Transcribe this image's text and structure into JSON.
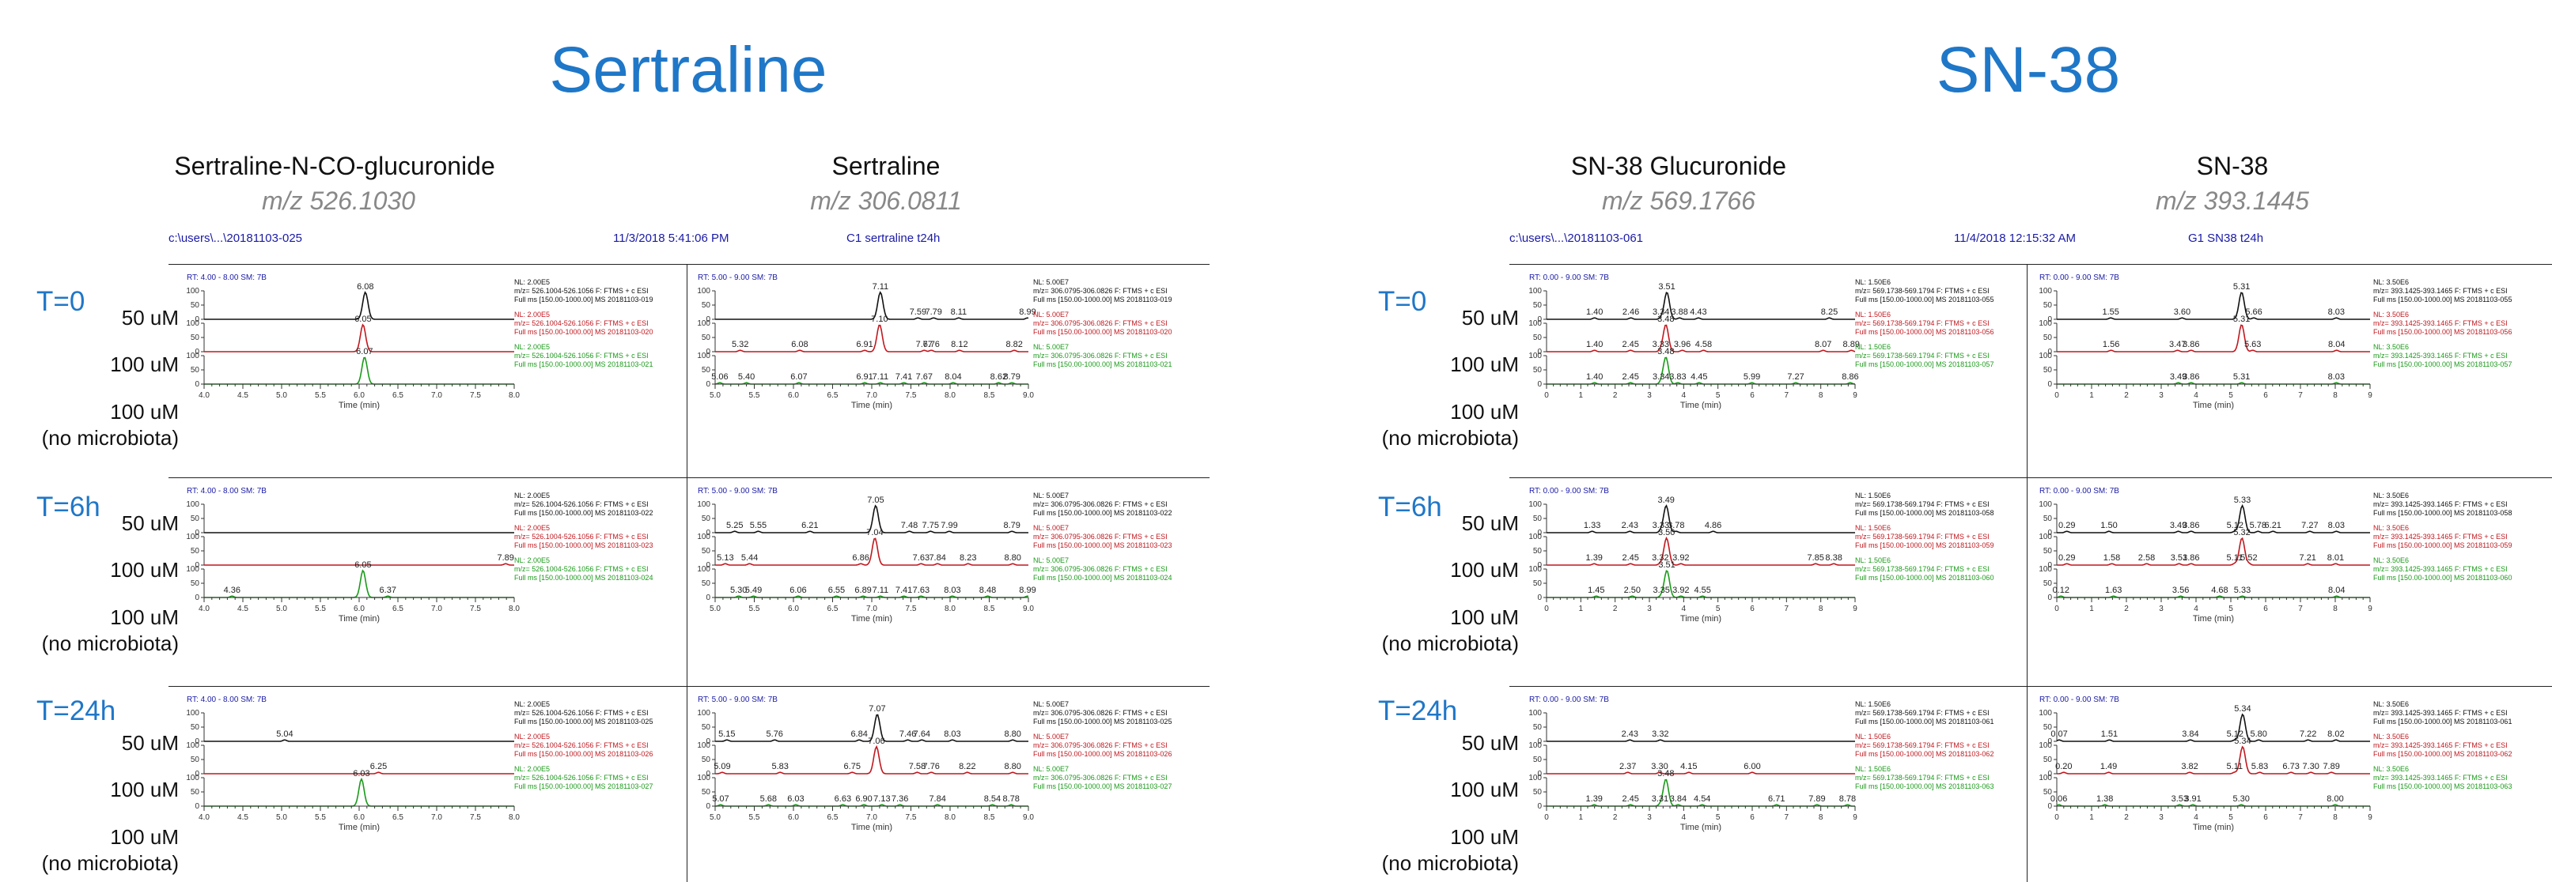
{
  "titles": {
    "left": "Sertraline",
    "right": "SN-38"
  },
  "compounds": [
    {
      "name": "Sertraline-N-CO-glucuronide",
      "mz": "m/z 526.1030"
    },
    {
      "name": "Sertraline",
      "mz": "m/z 306.0811"
    },
    {
      "name": "SN-38 Glucuronide",
      "mz": "m/z 569.1766"
    },
    {
      "name": "SN-38",
      "mz": "m/z 393.1445"
    }
  ],
  "headers": {
    "left": {
      "path": "c:\\users\\...\\20181103-025",
      "date": "11/3/2018 5:41:06 PM",
      "sample": "C1 sertraline t24h"
    },
    "right": {
      "path": "c:\\users\\...\\20181103-061",
      "date": "11/4/2018 12:15:32 AM",
      "sample": "G1 SN38 t24h"
    }
  },
  "times": [
    "T=0",
    "T=6h",
    "T=24h"
  ],
  "conditions": [
    "50 uM",
    "100 uM",
    "100 uM",
    "(no microbiota)"
  ],
  "colors": {
    "trace1": "#111111",
    "trace2": "#c0181f",
    "trace3": "#1a9a1a",
    "accent": "#1f77c8",
    "header": "#1a1aa6"
  },
  "chart_data": [
    {
      "type": "line",
      "panel": "Sertraline-N-CO-glucuronide",
      "rt_label": "RT: 4.00 - 8.00   SM: 7B",
      "xlim": [
        4.0,
        8.0
      ],
      "xticks": [
        "4.0",
        "4.5",
        "5.0",
        "5.5",
        "6.0",
        "6.5",
        "7.0",
        "7.5",
        "8.0"
      ],
      "xlabel": "Time (min)",
      "ylabel_ticks": [
        "100",
        "50",
        "0"
      ],
      "groups": [
        {
          "traces": [
            {
              "nl": "NL: 2.00E5",
              "filter": "m/z= 526.1004-526.1056 F: FTMS + c ESI",
              "scan": "Full ms [150.00-1000.00]  MS 20181103-019",
              "peaks": [
                6.08
              ],
              "labels": [
                "6.08"
              ]
            },
            {
              "nl": "NL: 2.00E5",
              "filter": "m/z= 526.1004-526.1056 F: FTMS + c ESI",
              "scan": "Full ms [150.00-1000.00]  MS 20181103-020",
              "peaks": [
                6.05
              ],
              "labels": [
                "6.05"
              ]
            },
            {
              "nl": "NL: 2.00E5",
              "filter": "m/z= 526.1004-526.1056 F: FTMS + c ESI",
              "scan": "Full ms [150.00-1000.00]  MS 20181103-021",
              "peaks": [
                6.07
              ],
              "labels": [
                "6.07"
              ]
            }
          ]
        },
        {
          "traces": [
            {
              "nl": "NL: 2.00E5",
              "filter": "m/z= 526.1004-526.1056 F: FTMS + c ESI",
              "scan": "Full ms [150.00-1000.00]  MS 20181103-022",
              "peaks": [],
              "labels": []
            },
            {
              "nl": "NL: 2.00E5",
              "filter": "m/z= 526.1004-526.1056 F: FTMS + c ESI",
              "scan": "Full ms [150.00-1000.00]  MS 20181103-023",
              "peaks": [],
              "labels": [
                "7.89"
              ]
            },
            {
              "nl": "NL: 2.00E5",
              "filter": "m/z= 526.1004-526.1056 F: FTMS + c ESI",
              "scan": "Full ms [150.00-1000.00]  MS 20181103-024",
              "peaks": [
                6.05
              ],
              "labels": [
                "4.36",
                "6.05",
                "6.37"
              ]
            }
          ]
        },
        {
          "traces": [
            {
              "nl": "NL: 2.00E5",
              "filter": "m/z= 526.1004-526.1056 F: FTMS + c ESI",
              "scan": "Full ms [150.00-1000.00]  MS 20181103-025",
              "peaks": [],
              "labels": [
                "5.04"
              ]
            },
            {
              "nl": "NL: 2.00E5",
              "filter": "m/z= 526.1004-526.1056 F: FTMS + c ESI",
              "scan": "Full ms [150.00-1000.00]  MS 20181103-026",
              "peaks": [],
              "labels": [
                "6.25"
              ]
            },
            {
              "nl": "NL: 2.00E5",
              "filter": "m/z= 526.1004-526.1056 F: FTMS + c ESI",
              "scan": "Full ms [150.00-1000.00]  MS 20181103-027",
              "peaks": [
                6.03
              ],
              "labels": [
                "6.03"
              ]
            }
          ]
        }
      ]
    },
    {
      "type": "line",
      "panel": "Sertraline",
      "rt_label": "RT: 5.00 - 9.00   SM: 7B",
      "xlim": [
        5.0,
        9.0
      ],
      "xticks": [
        "5.0",
        "5.5",
        "6.0",
        "6.5",
        "7.0",
        "7.5",
        "8.0",
        "8.5",
        "9.0"
      ],
      "xlabel": "Time (min)",
      "ylabel_ticks": [
        "100",
        "50",
        "0"
      ],
      "groups": [
        {
          "traces": [
            {
              "nl": "NL: 5.00E7",
              "filter": "m/z= 306.0795-306.0826 F: FTMS + c ESI",
              "scan": "Full ms [150.00-1000.00]  MS 20181103-019",
              "peaks": [
                7.11
              ],
              "labels": [
                "7.11",
                "7.59",
                "7.79",
                "8.11",
                "8.99"
              ]
            },
            {
              "nl": "NL: 5.00E7",
              "filter": "m/z= 306.0795-306.0826 F: FTMS + c ESI",
              "scan": "Full ms [150.00-1000.00]  MS 20181103-020",
              "peaks": [
                7.1
              ],
              "labels": [
                "5.32",
                "6.08",
                "6.91",
                "7.10",
                "7.67",
                "7.76",
                "8.12",
                "8.82"
              ]
            },
            {
              "nl": "NL: 5.00E7",
              "filter": "m/z= 306.0795-306.0826 F: FTMS + c ESI",
              "scan": "Full ms [150.00-1000.00]  MS 20181103-021",
              "peaks": [],
              "labels": [
                "5.06",
                "5.40",
                "6.07",
                "6.91",
                "7.11",
                "7.41",
                "7.67",
                "8.04",
                "8.62",
                "8.79"
              ]
            }
          ]
        },
        {
          "traces": [
            {
              "nl": "NL: 5.00E7",
              "filter": "m/z= 306.0795-306.0826 F: FTMS + c ESI",
              "scan": "Full ms [150.00-1000.00]  MS 20181103-022",
              "peaks": [
                7.05
              ],
              "labels": [
                "5.25",
                "5.55",
                "6.21",
                "7.05",
                "7.48",
                "7.75",
                "7.99",
                "8.79"
              ]
            },
            {
              "nl": "NL: 5.00E7",
              "filter": "m/z= 306.0795-306.0826 F: FTMS + c ESI",
              "scan": "Full ms [150.00-1000.00]  MS 20181103-023",
              "peaks": [
                7.04
              ],
              "labels": [
                "5.13",
                "5.44",
                "6.86",
                "7.04",
                "7.63",
                "7.84",
                "8.23",
                "8.80"
              ]
            },
            {
              "nl": "NL: 5.00E7",
              "filter": "m/z= 306.0795-306.0826 F: FTMS + c ESI",
              "scan": "Full ms [150.00-1000.00]  MS 20181103-024",
              "peaks": [],
              "labels": [
                "5.30",
                "5.49",
                "6.06",
                "6.55",
                "6.89",
                "7.11",
                "7.41",
                "7.63",
                "8.03",
                "8.48",
                "8.99"
              ]
            }
          ]
        },
        {
          "traces": [
            {
              "nl": "NL: 5.00E7",
              "filter": "m/z= 306.0795-306.0826 F: FTMS + c ESI",
              "scan": "Full ms [150.00-1000.00]  MS 20181103-025",
              "peaks": [
                7.07
              ],
              "labels": [
                "5.15",
                "5.76",
                "6.84",
                "7.07",
                "7.46",
                "7.64",
                "8.03",
                "8.80"
              ]
            },
            {
              "nl": "NL: 5.00E7",
              "filter": "m/z= 306.0795-306.0826 F: FTMS + c ESI",
              "scan": "Full ms [150.00-1000.00]  MS 20181103-026",
              "peaks": [
                7.06
              ],
              "labels": [
                "5.09",
                "5.83",
                "6.75",
                "7.06",
                "7.58",
                "7.76",
                "8.22",
                "8.80"
              ]
            },
            {
              "nl": "NL: 5.00E7",
              "filter": "m/z= 306.0795-306.0826 F: FTMS + c ESI",
              "scan": "Full ms [150.00-1000.00]  MS 20181103-027",
              "peaks": [],
              "labels": [
                "5.07",
                "5.68",
                "6.03",
                "6.63",
                "6.90",
                "7.13",
                "7.36",
                "7.84",
                "8.54",
                "8.78"
              ]
            }
          ]
        }
      ]
    },
    {
      "type": "line",
      "panel": "SN-38 Glucuronide",
      "rt_label": "RT: 0.00 - 9.00   SM: 7B",
      "xlim": [
        0,
        9
      ],
      "xticks": [
        "0",
        "1",
        "2",
        "3",
        "4",
        "5",
        "6",
        "7",
        "8",
        "9"
      ],
      "xlabel": "Time (min)",
      "ylabel_ticks": [
        "100",
        "50",
        "0"
      ],
      "groups": [
        {
          "traces": [
            {
              "nl": "NL: 1.50E6",
              "filter": "m/z= 569.1738-569.1794 F: FTMS + c ESI",
              "scan": "Full ms [150.00-1000.00]  MS 20181103-055",
              "peaks": [
                3.51
              ],
              "labels": [
                "1.40",
                "2.46",
                "3.34",
                "3.51",
                "3.88",
                "4.43",
                "8.25"
              ]
            },
            {
              "nl": "NL: 1.50E6",
              "filter": "m/z= 569.1738-569.1794 F: FTMS + c ESI",
              "scan": "Full ms [150.00-1000.00]  MS 20181103-056",
              "peaks": [
                3.48
              ],
              "labels": [
                "1.40",
                "2.45",
                "3.33",
                "3.48",
                "3.96",
                "4.58",
                "8.07",
                "8.89"
              ]
            },
            {
              "nl": "NL: 1.50E6",
              "filter": "m/z= 569.1738-569.1794 F: FTMS + c ESI",
              "scan": "Full ms [150.00-1000.00]  MS 20181103-057",
              "peaks": [
                3.48
              ],
              "labels": [
                "1.40",
                "2.45",
                "3.34",
                "3.48",
                "3.83",
                "4.45",
                "5.99",
                "7.27",
                "8.86"
              ]
            }
          ]
        },
        {
          "traces": [
            {
              "nl": "NL: 1.50E6",
              "filter": "m/z= 569.1738-569.1794 F: FTMS + c ESI",
              "scan": "Full ms [150.00-1000.00]  MS 20181103-058",
              "peaks": [
                3.49
              ],
              "labels": [
                "1.33",
                "2.43",
                "3.33",
                "3.49",
                "3.78",
                "4.86"
              ]
            },
            {
              "nl": "NL: 1.50E6",
              "filter": "m/z= 569.1738-569.1794 F: FTMS + c ESI",
              "scan": "Full ms [150.00-1000.00]  MS 20181103-059",
              "peaks": [
                3.5
              ],
              "labels": [
                "1.39",
                "2.45",
                "3.32",
                "3.50",
                "3.92",
                "7.85",
                "8.38"
              ]
            },
            {
              "nl": "NL: 1.50E6",
              "filter": "m/z= 569.1738-569.1794 F: FTMS + c ESI",
              "scan": "Full ms [150.00-1000.00]  MS 20181103-060",
              "peaks": [
                3.51
              ],
              "labels": [
                "1.45",
                "2.50",
                "3.35",
                "3.51",
                "3.92",
                "4.55"
              ]
            }
          ]
        },
        {
          "traces": [
            {
              "nl": "NL: 1.50E6",
              "filter": "m/z= 569.1738-569.1794 F: FTMS + c ESI",
              "scan": "Full ms [150.00-1000.00]  MS 20181103-061",
              "peaks": [],
              "labels": [
                "2.43",
                "3.32"
              ]
            },
            {
              "nl": "NL: 1.50E6",
              "filter": "m/z= 569.1738-569.1794 F: FTMS + c ESI",
              "scan": "Full ms [150.00-1000.00]  MS 20181103-062",
              "peaks": [],
              "labels": [
                "2.37",
                "3.30",
                "4.15",
                "6.00"
              ]
            },
            {
              "nl": "NL: 1.50E6",
              "filter": "m/z= 569.1738-569.1794 F: FTMS + c ESI",
              "scan": "Full ms [150.00-1000.00]  MS 20181103-063",
              "peaks": [
                3.48
              ],
              "labels": [
                "1.39",
                "2.45",
                "3.31",
                "3.48",
                "3.84",
                "4.54",
                "6.71",
                "7.89",
                "8.78"
              ]
            }
          ]
        }
      ]
    },
    {
      "type": "line",
      "panel": "SN-38",
      "rt_label": "RT: 0.00 - 9.00   SM: 7B",
      "xlim": [
        0,
        9
      ],
      "xticks": [
        "0",
        "1",
        "2",
        "3",
        "4",
        "5",
        "6",
        "7",
        "8",
        "9"
      ],
      "xlabel": "Time (min)",
      "ylabel_ticks": [
        "100",
        "50",
        "0"
      ],
      "groups": [
        {
          "traces": [
            {
              "nl": "NL: 3.50E6",
              "filter": "m/z= 393.1425-393.1465 F: FTMS + c ESI",
              "scan": "Full ms [150.00-1000.00]  MS 20181103-055",
              "peaks": [
                5.31
              ],
              "labels": [
                "1.55",
                "3.60",
                "5.31",
                "5.66",
                "8.03"
              ]
            },
            {
              "nl": "NL: 3.50E6",
              "filter": "m/z= 393.1425-393.1465 F: FTMS + c ESI",
              "scan": "Full ms [150.00-1000.00]  MS 20181103-056",
              "peaks": [
                5.31
              ],
              "labels": [
                "1.56",
                "3.47",
                "3.86",
                "5.31",
                "5.63",
                "8.04"
              ]
            },
            {
              "nl": "NL: 3.50E6",
              "filter": "m/z= 393.1425-393.1465 F: FTMS + c ESI",
              "scan": "Full ms [150.00-1000.00]  MS 20181103-057",
              "peaks": [],
              "labels": [
                "3.49",
                "3.86",
                "5.31",
                "8.03"
              ]
            }
          ]
        },
        {
          "traces": [
            {
              "nl": "NL: 3.50E6",
              "filter": "m/z= 393.1425-393.1465 F: FTMS + c ESI",
              "scan": "Full ms [150.00-1000.00]  MS 20181103-058",
              "peaks": [
                5.33
              ],
              "labels": [
                "0.29",
                "1.50",
                "3.49",
                "3.86",
                "5.12",
                "5.33",
                "5.78",
                "6.21",
                "7.27",
                "8.03"
              ]
            },
            {
              "nl": "NL: 3.50E6",
              "filter": "m/z= 393.1425-393.1465 F: FTMS + c ESI",
              "scan": "Full ms [150.00-1000.00]  MS 20181103-059",
              "peaks": [
                5.32
              ],
              "labels": [
                "0.29",
                "1.58",
                "2.58",
                "3.51",
                "3.86",
                "5.11",
                "5.32",
                "5.52",
                "7.21",
                "8.01"
              ]
            },
            {
              "nl": "NL: 3.50E6",
              "filter": "m/z= 393.1425-393.1465 F: FTMS + c ESI",
              "scan": "Full ms [150.00-1000.00]  MS 20181103-060",
              "peaks": [],
              "labels": [
                "0.12",
                "1.63",
                "3.56",
                "4.68",
                "5.33",
                "8.04"
              ]
            }
          ]
        },
        {
          "traces": [
            {
              "nl": "NL: 3.50E6",
              "filter": "m/z= 393.1425-393.1465 F: FTMS + c ESI",
              "scan": "Full ms [150.00-1000.00]  MS 20181103-061",
              "peaks": [
                5.34
              ],
              "labels": [
                "0.07",
                "1.51",
                "3.84",
                "5.12",
                "5.34",
                "5.80",
                "7.22",
                "8.02"
              ]
            },
            {
              "nl": "NL: 3.50E6",
              "filter": "m/z= 393.1425-393.1465 F: FTMS + c ESI",
              "scan": "Full ms [150.00-1000.00]  MS 20181103-062",
              "peaks": [
                5.34
              ],
              "labels": [
                "0.20",
                "1.49",
                "3.82",
                "5.11",
                "5.34",
                "5.83",
                "6.73",
                "7.30",
                "7.89"
              ]
            },
            {
              "nl": "NL: 3.50E6",
              "filter": "m/z= 393.1425-393.1465 F: FTMS + c ESI",
              "scan": "Full ms [150.00-1000.00]  MS 20181103-063",
              "peaks": [],
              "labels": [
                "0.06",
                "1.38",
                "3.53",
                "3.91",
                "5.30",
                "8.00"
              ]
            }
          ]
        }
      ]
    }
  ]
}
